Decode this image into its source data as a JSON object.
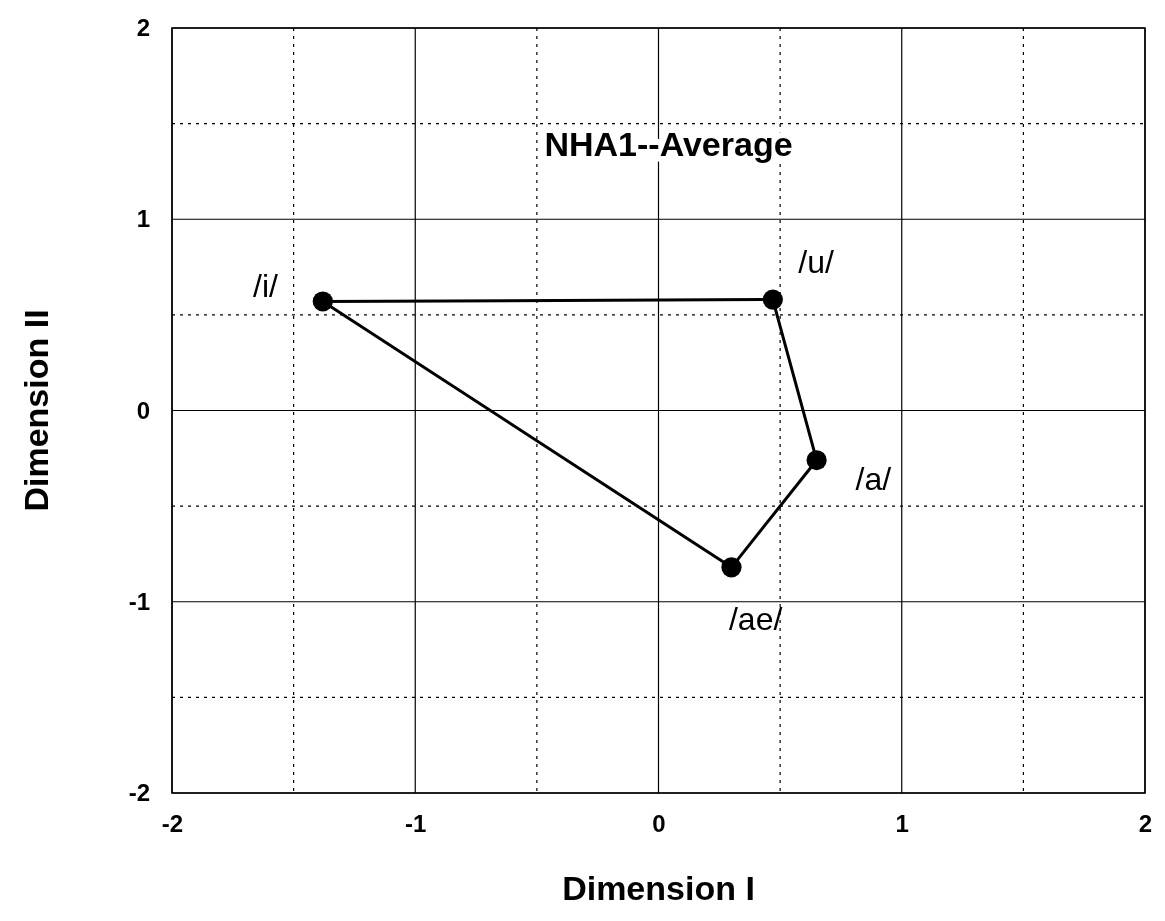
{
  "chart_data": {
    "type": "scatter",
    "title": "NHA1--Average",
    "xlabel": "Dimension I",
    "ylabel": "Dimension II",
    "x": [
      -1.38,
      0.47,
      0.65,
      0.3
    ],
    "series": [
      {
        "color": "#000000",
        "values": [
          0.57,
          0.58,
          -0.26,
          -0.82
        ]
      },
      {
        "type": "line",
        "color": "#000000",
        "line_style": "solid",
        "marker": "none",
        "x": [
          -1.38,
          0.47,
          0.65
        ],
        "values": [
          0.57,
          0.58,
          -0.26
        ]
      },
      {
        "type": "line",
        "color": "#000000",
        "line_style": "solid",
        "marker": "none",
        "x": [
          -1.38,
          0.3,
          0.65
        ],
        "values": [
          0.57,
          -0.82,
          -0.26
        ]
      }
    ],
    "marker": "circle",
    "grid": true,
    "xlim": [
      -2,
      2
    ],
    "ylim": [
      -2,
      2
    ],
    "xticks": [
      -2,
      {
        "value": -1.5,
        "label": null
      },
      -1,
      {
        "value": -0.5,
        "label": null
      },
      0,
      {
        "value": 0.5,
        "label": null
      },
      1,
      {
        "value": 1.5,
        "label": null
      },
      2
    ],
    "yticks": [
      -2,
      {
        "value": -1.5,
        "label": null
      },
      -1,
      {
        "value": -0.5,
        "label": null
      },
      0,
      {
        "value": 0.5,
        "label": null
      },
      1,
      {
        "value": 1.5,
        "label": null
      },
      2
    ],
    "annotations": [
      {
        "text": "/i/",
        "x": -1.38,
        "y": 0.57
      },
      {
        "text": "/u/",
        "x": 0.47,
        "y": 0.58
      },
      {
        "text": "/a/",
        "x": 0.65,
        "y": -0.26
      },
      {
        "text": "/ae/",
        "x": 0.3,
        "y": -0.82
      }
    ]
  }
}
